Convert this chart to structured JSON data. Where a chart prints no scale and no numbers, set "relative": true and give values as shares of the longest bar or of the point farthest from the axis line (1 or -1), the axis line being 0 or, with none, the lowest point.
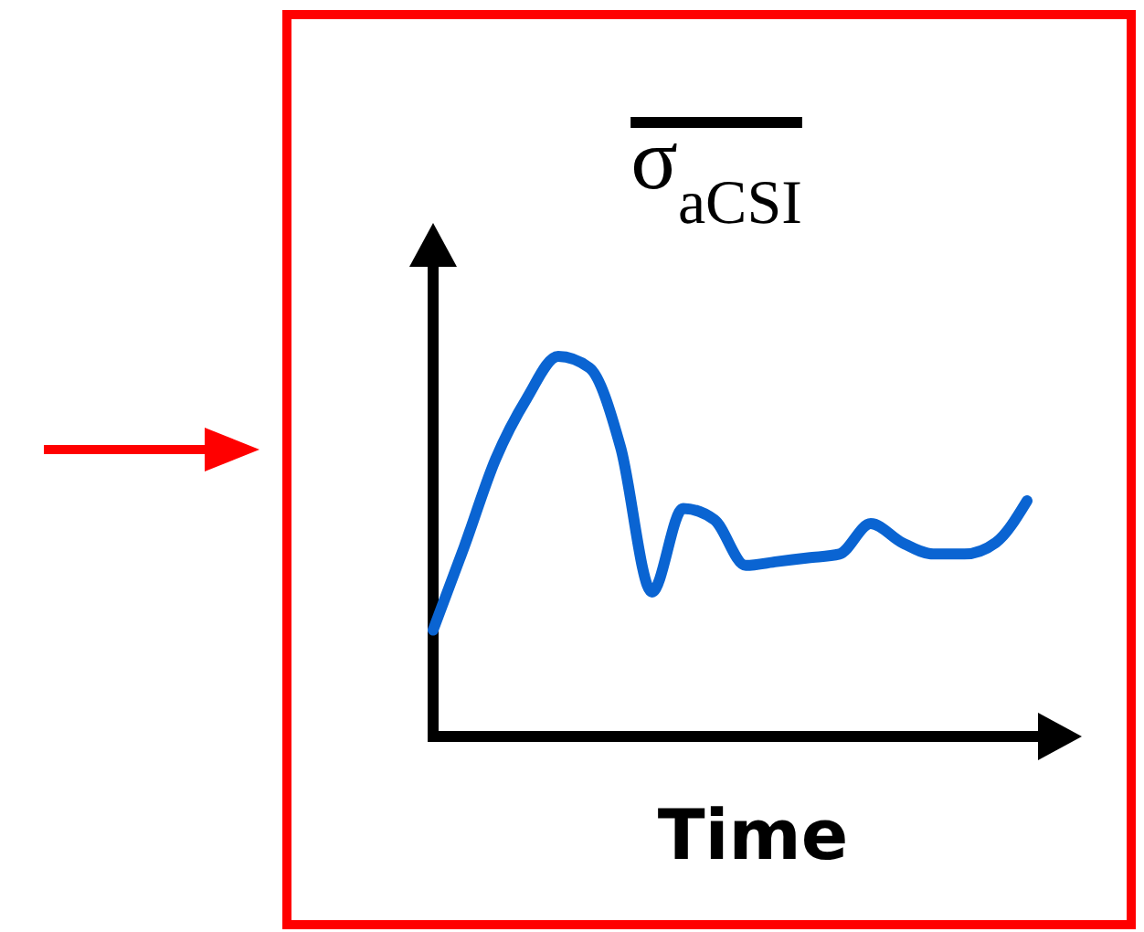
{
  "chart_data": {
    "type": "line",
    "title": "σ$_{aCSI}$",
    "xlabel": "Time",
    "relative": true,
    "categories": [
      null,
      null,
      null,
      null,
      null,
      null,
      null,
      null,
      null,
      null,
      null,
      null,
      null,
      null,
      null,
      null,
      null,
      null,
      null,
      null
    ],
    "series": [
      {
        "color": "#0a64d2",
        "values": [
          0.28,
          0.5,
          0.73,
          0.89,
          1,
          0.97,
          0.76,
          0.38,
          0.6,
          0.57,
          0.45,
          0.46,
          0.47,
          0.48,
          0.56,
          0.51,
          0.48,
          0.48,
          0.51,
          0.62
        ]
      }
    ],
    "marker": "none",
    "line_style": "solid"
  }
}
